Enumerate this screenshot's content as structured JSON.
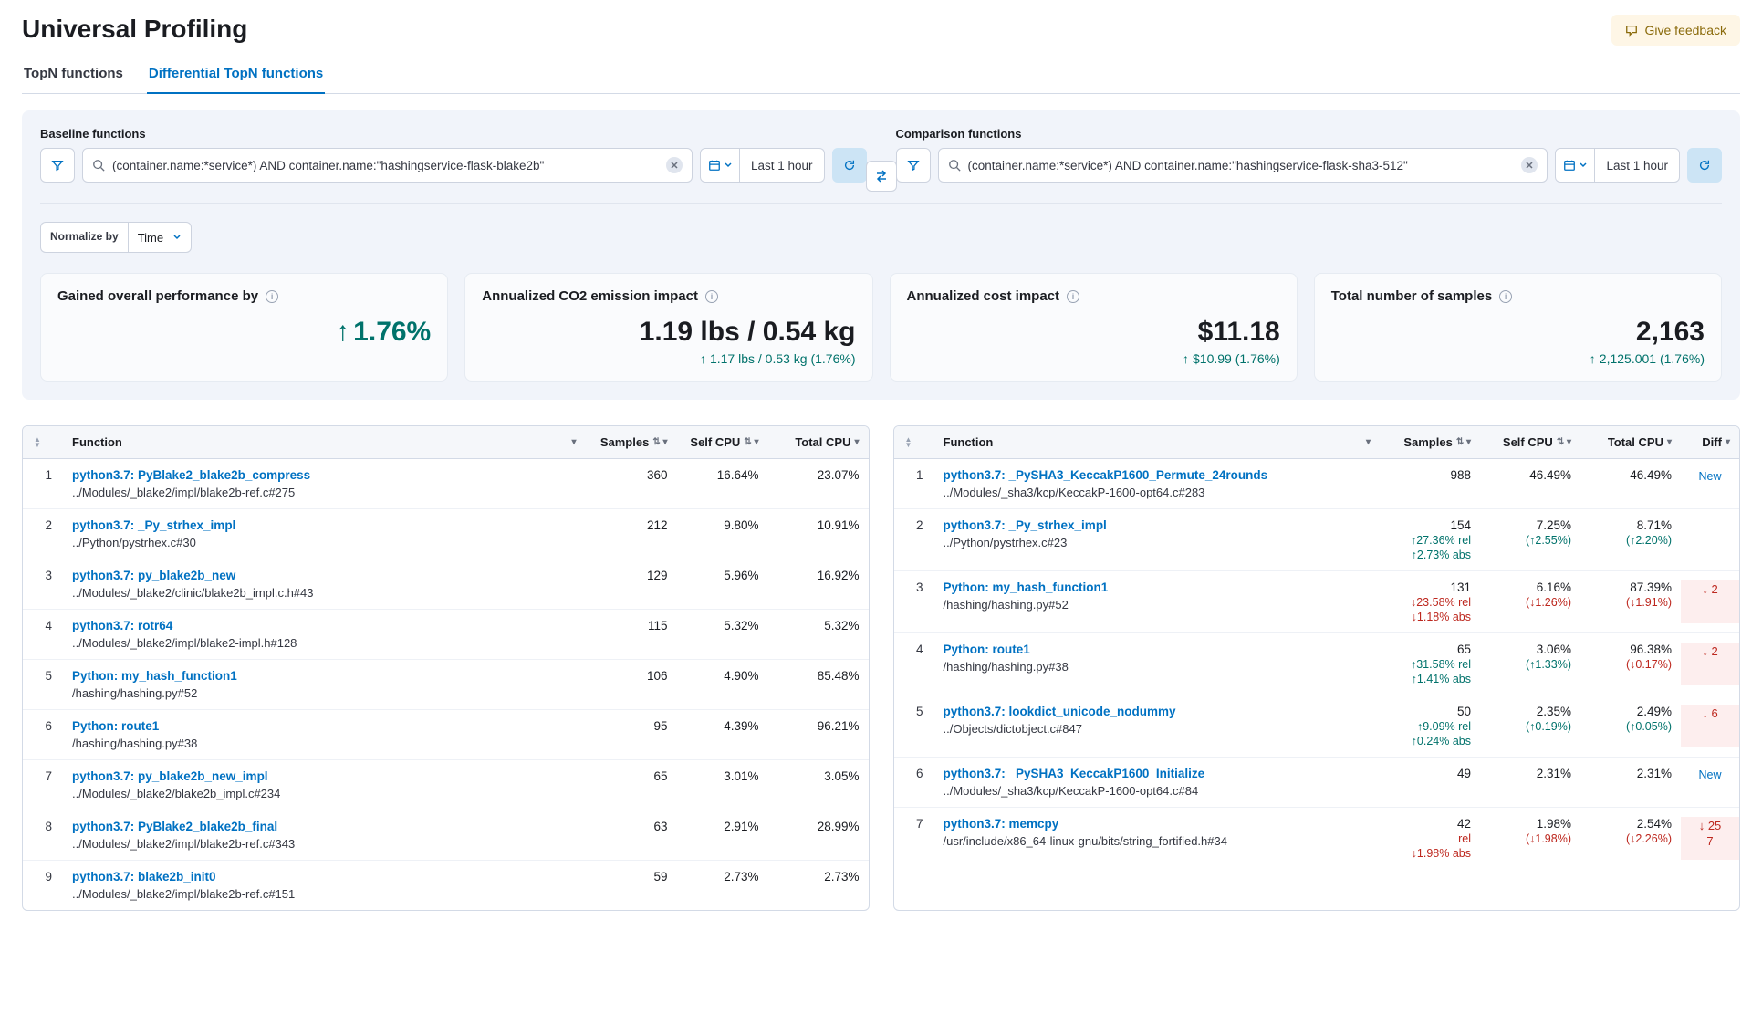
{
  "page": {
    "title": "Universal Profiling",
    "feedback": "Give feedback"
  },
  "tabs": {
    "topn": "TopN functions",
    "diff": "Differential TopN functions"
  },
  "query": {
    "baseline_label": "Baseline functions",
    "comparison_label": "Comparison functions",
    "baseline_query": "(container.name:*service*) AND container.name:\"hashingservice-flask-blake2b\"",
    "comparison_query": "(container.name:*service*) AND container.name:\"hashingservice-flask-sha3-512\"",
    "date_label": "Last 1 hour",
    "normalize_label": "Normalize by",
    "normalize_value": "Time"
  },
  "cards": {
    "perf": {
      "title": "Gained overall performance by",
      "value": "1.76%"
    },
    "co2": {
      "title": "Annualized CO2 emission impact",
      "value": "1.19 lbs / 0.54 kg",
      "sub": "1.17 lbs / 0.53 kg (1.76%)"
    },
    "cost": {
      "title": "Annualized cost impact",
      "value": "$11.18",
      "sub": "$10.99 (1.76%)"
    },
    "samples": {
      "title": "Total number of samples",
      "value": "2,163",
      "sub": "2,125.001 (1.76%)"
    }
  },
  "columns": {
    "function": "Function",
    "samples": "Samples",
    "self_cpu": "Self CPU",
    "total_cpu": "Total CPU",
    "diff": "Diff"
  },
  "baseline_rows": [
    {
      "rank": "1",
      "fn": "python3.7: PyBlake2_blake2b_compress",
      "path": "../Modules/_blake2/impl/blake2b-ref.c#275",
      "samples": "360",
      "self": "16.64%",
      "total": "23.07%"
    },
    {
      "rank": "2",
      "fn": "python3.7: _Py_strhex_impl",
      "path": "../Python/pystrhex.c#30",
      "samples": "212",
      "self": "9.80%",
      "total": "10.91%"
    },
    {
      "rank": "3",
      "fn": "python3.7: py_blake2b_new",
      "path": "../Modules/_blake2/clinic/blake2b_impl.c.h#43",
      "samples": "129",
      "self": "5.96%",
      "total": "16.92%"
    },
    {
      "rank": "4",
      "fn": "python3.7: rotr64",
      "path": "../Modules/_blake2/impl/blake2-impl.h#128",
      "samples": "115",
      "self": "5.32%",
      "total": "5.32%"
    },
    {
      "rank": "5",
      "fn": "Python: my_hash_function1",
      "path": "/hashing/hashing.py#52",
      "samples": "106",
      "self": "4.90%",
      "total": "85.48%"
    },
    {
      "rank": "6",
      "fn": "Python: route1",
      "path": "/hashing/hashing.py#38",
      "samples": "95",
      "self": "4.39%",
      "total": "96.21%"
    },
    {
      "rank": "7",
      "fn": "python3.7: py_blake2b_new_impl",
      "path": "../Modules/_blake2/blake2b_impl.c#234",
      "samples": "65",
      "self": "3.01%",
      "total": "3.05%"
    },
    {
      "rank": "8",
      "fn": "python3.7: PyBlake2_blake2b_final",
      "path": "../Modules/_blake2/impl/blake2b-ref.c#343",
      "samples": "63",
      "self": "2.91%",
      "total": "28.99%"
    },
    {
      "rank": "9",
      "fn": "python3.7: blake2b_init0",
      "path": "../Modules/_blake2/impl/blake2b-ref.c#151",
      "samples": "59",
      "self": "2.73%",
      "total": "2.73%"
    }
  ],
  "comparison_rows": [
    {
      "rank": "1",
      "fn": "python3.7: _PySHA3_KeccakP1600_Permute_24rounds",
      "path": "../Modules/_sha3/kcp/KeccakP-1600-opt64.c#283",
      "samples": "988",
      "self": "46.49%",
      "total": "46.49%",
      "diff_type": "new",
      "diff_text": "New"
    },
    {
      "rank": "2",
      "fn": "python3.7: _Py_strhex_impl",
      "path": "../Python/pystrhex.c#23",
      "samples": "154",
      "samples_d1": "↑27.36% rel",
      "samples_d2": "↑2.73% abs",
      "samples_dir": "up",
      "self": "7.25%",
      "self_d": "(↑2.55%)",
      "self_dir": "up",
      "total": "8.71%",
      "total_d": "(↑2.20%)",
      "total_dir": "up",
      "diff_type": "none"
    },
    {
      "rank": "3",
      "fn": "Python: my_hash_function1",
      "path": "/hashing/hashing.py#52",
      "samples": "131",
      "samples_d1": "↓23.58% rel",
      "samples_d2": "↓1.18% abs",
      "samples_dir": "down",
      "self": "6.16%",
      "self_d": "(↓1.26%)",
      "self_dir": "down",
      "total": "87.39%",
      "total_d": "(↓1.91%)",
      "total_dir": "down",
      "diff_type": "rank",
      "diff_text": "2",
      "diff_dir": "down"
    },
    {
      "rank": "4",
      "fn": "Python: route1",
      "path": "/hashing/hashing.py#38",
      "samples": "65",
      "samples_d1": "↑31.58% rel",
      "samples_d2": "↑1.41% abs",
      "samples_dir": "up",
      "self": "3.06%",
      "self_d": "(↑1.33%)",
      "self_dir": "up",
      "total": "96.38%",
      "total_d": "(↓0.17%)",
      "total_dir": "down",
      "diff_type": "rank",
      "diff_text": "2",
      "diff_dir": "down"
    },
    {
      "rank": "5",
      "fn": "python3.7: lookdict_unicode_nodummy",
      "path": "../Objects/dictobject.c#847",
      "samples": "50",
      "samples_d1": "↑9.09% rel",
      "samples_d2": "↑0.24% abs",
      "samples_dir": "up",
      "self": "2.35%",
      "self_d": "(↑0.19%)",
      "self_dir": "up",
      "total": "2.49%",
      "total_d": "(↑0.05%)",
      "total_dir": "up",
      "diff_type": "rank",
      "diff_text": "6",
      "diff_dir": "down"
    },
    {
      "rank": "6",
      "fn": "python3.7: _PySHA3_KeccakP1600_Initialize",
      "path": "../Modules/_sha3/kcp/KeccakP-1600-opt64.c#84",
      "samples": "49",
      "self": "2.31%",
      "total": "2.31%",
      "diff_type": "new",
      "diff_text": "New"
    },
    {
      "rank": "7",
      "fn": "python3.7: memcpy",
      "path": "/usr/include/x86_64-linux-gnu/bits/string_fortified.h#34",
      "samples": "42",
      "samples_d1": "rel",
      "samples_d2": "↓1.98% abs",
      "samples_dir": "down",
      "self": "1.98%",
      "self_d": "(↓1.98%)",
      "self_dir": "down",
      "total": "2.54%",
      "total_d": "(↓2.26%)",
      "total_dir": "down",
      "diff_type": "rank",
      "diff_text": "25",
      "diff_text2": "7",
      "diff_dir": "down"
    }
  ]
}
